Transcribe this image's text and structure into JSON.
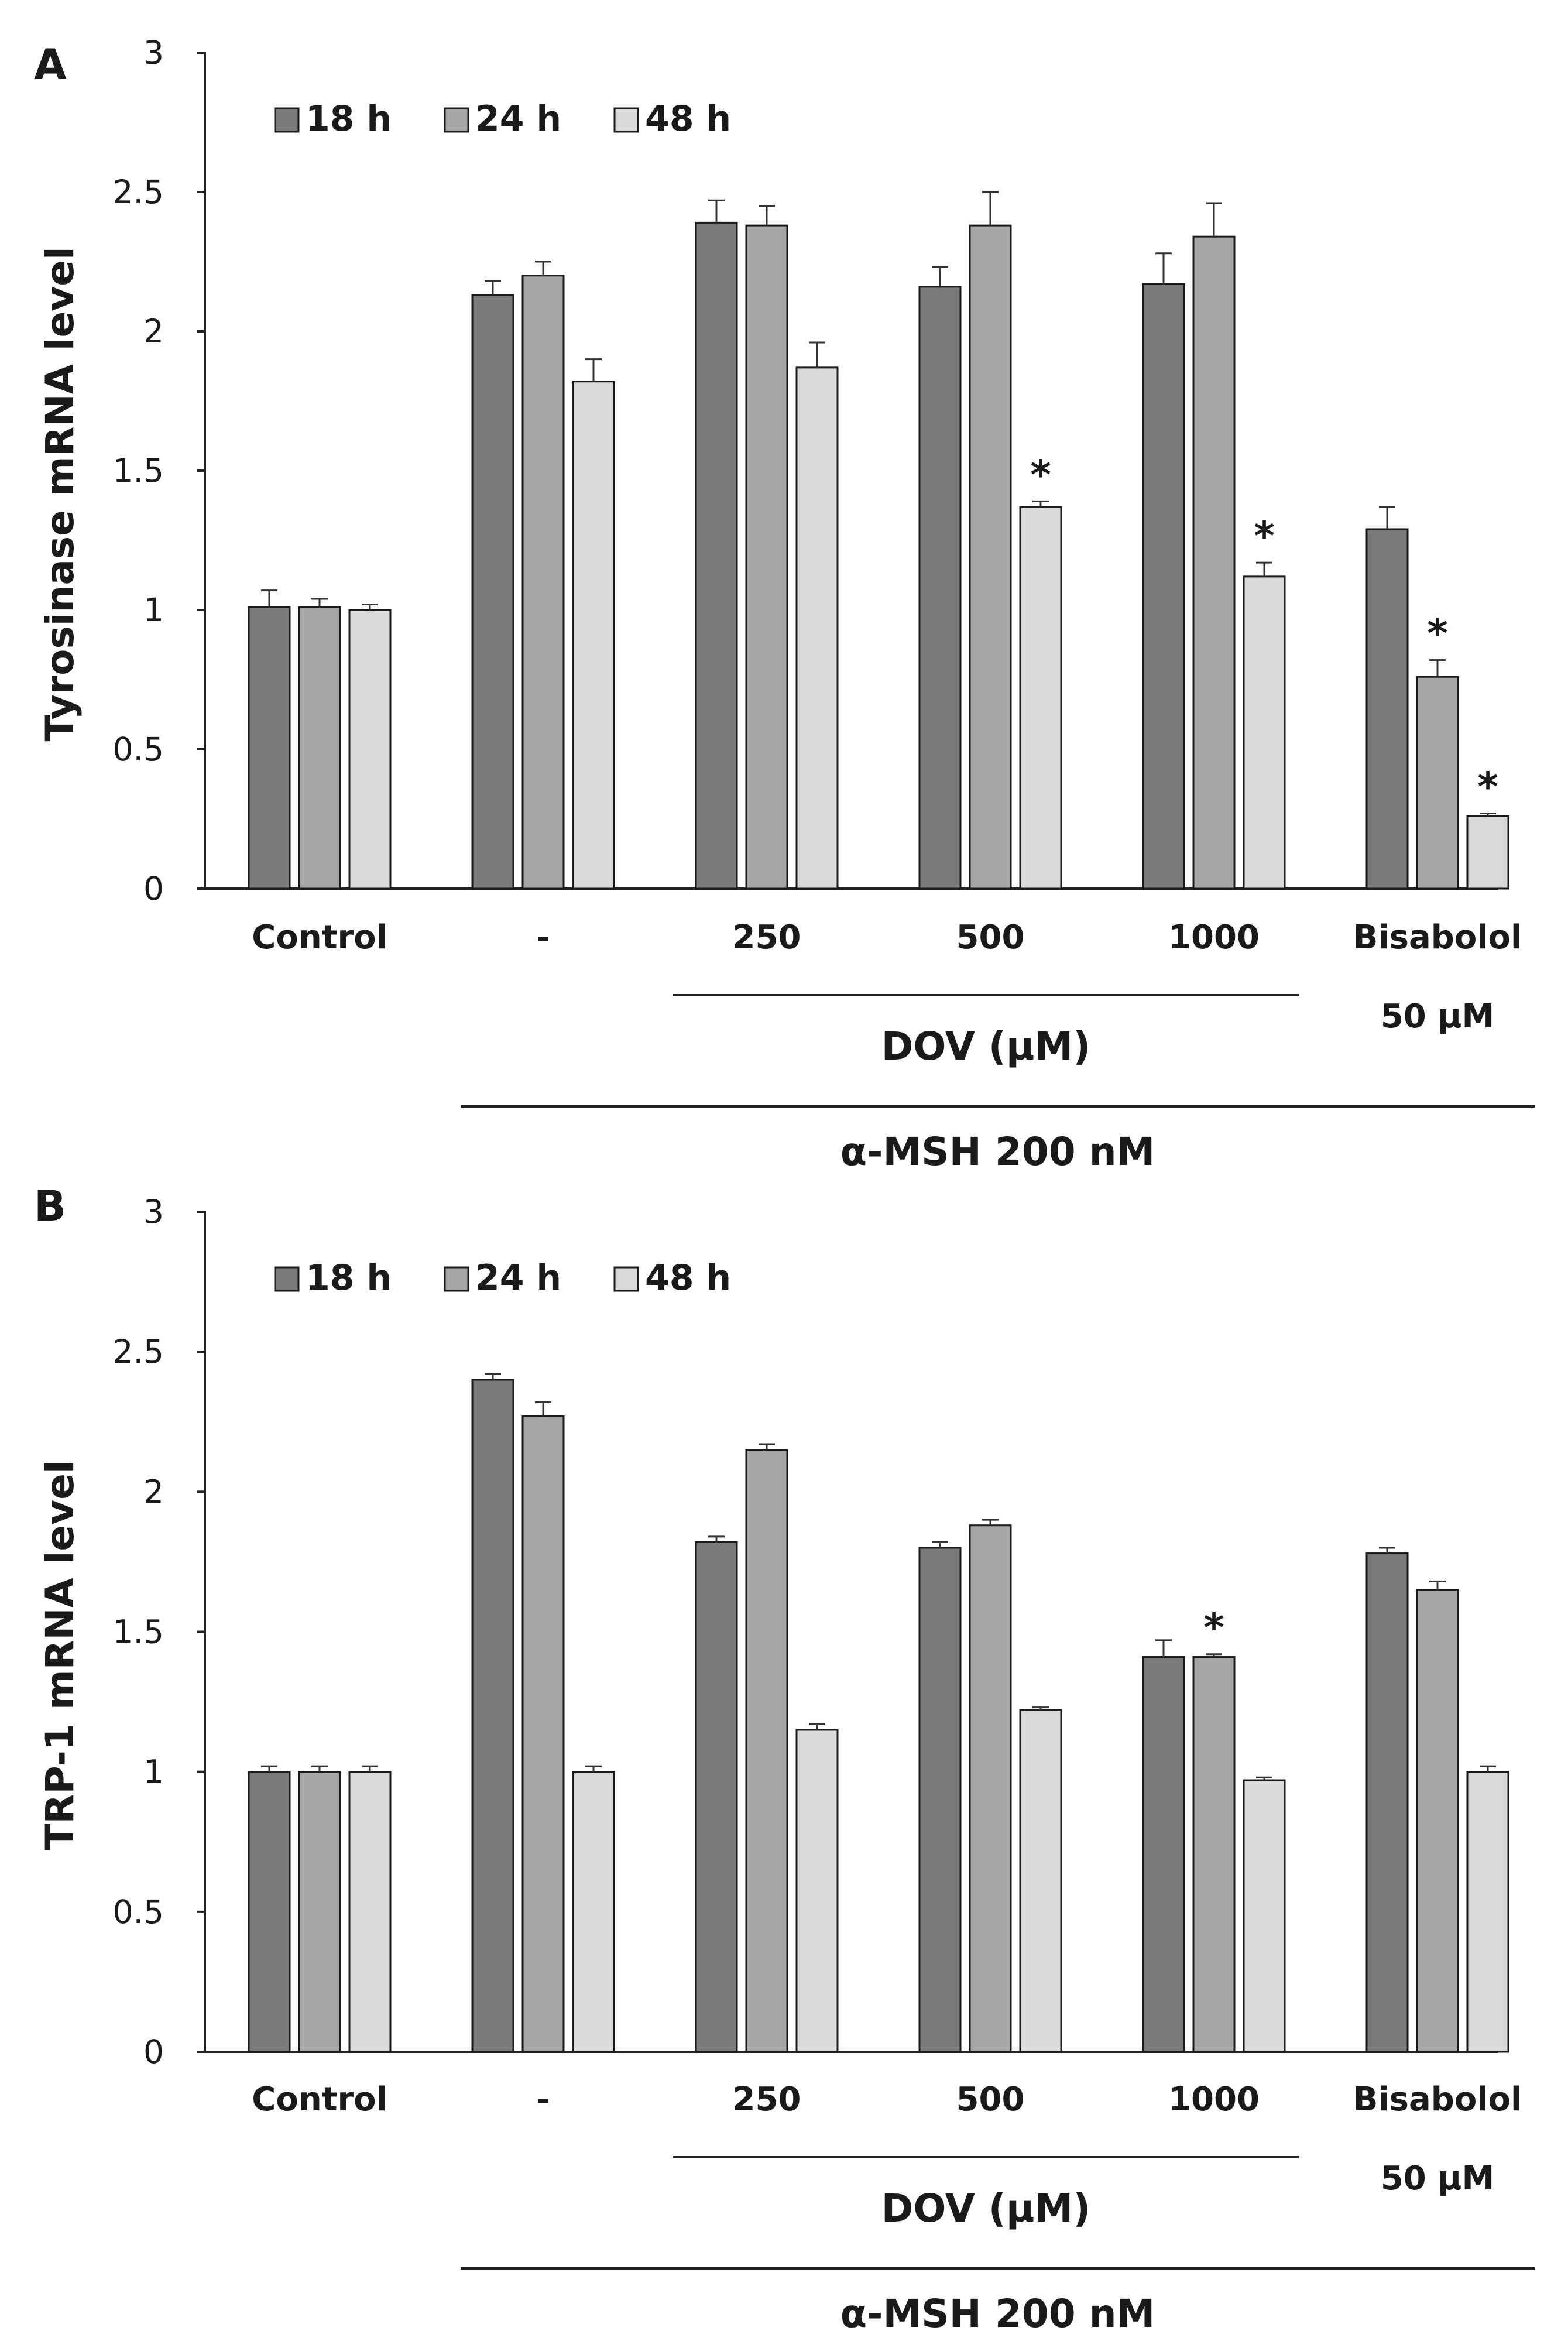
{
  "chart_data": [
    {
      "type": "bar",
      "panel_label": "A",
      "ylabel": "Tyrosinase  mRNA level",
      "ylim": [
        0,
        3
      ],
      "yticks": [
        "0",
        "0.5",
        "1",
        "1.5",
        "2",
        "2.5",
        "3"
      ],
      "categories": [
        "Control",
        "-",
        "250",
        "500",
        "1000",
        "Bisabolol"
      ],
      "category_sublabel": "50  μM",
      "group_labels": {
        "dov": "DOV (μM)",
        "msh": "α-MSH 200 nM"
      },
      "legend_position": "top-left",
      "series": [
        {
          "name": "18 h",
          "color": "#7a7a7a",
          "values": [
            1.01,
            2.13,
            2.39,
            2.16,
            2.17,
            1.29
          ],
          "errors": [
            0.06,
            0.05,
            0.08,
            0.07,
            0.11,
            0.08
          ]
        },
        {
          "name": "24 h",
          "color": "#a6a6a6",
          "values": [
            1.01,
            2.2,
            2.38,
            2.38,
            2.34,
            0.76
          ],
          "errors": [
            0.03,
            0.05,
            0.07,
            0.12,
            0.12,
            0.06
          ]
        },
        {
          "name": "48 h",
          "color": "#d9d9d9",
          "values": [
            1.0,
            1.82,
            1.87,
            1.37,
            1.12,
            0.26
          ],
          "errors": [
            0.02,
            0.08,
            0.09,
            0.02,
            0.05,
            0.01
          ]
        }
      ],
      "significance": [
        {
          "category": 3,
          "series": 2,
          "label": "*"
        },
        {
          "category": 4,
          "series": 2,
          "label": "*"
        },
        {
          "category": 5,
          "series": 1,
          "label": "*"
        },
        {
          "category": 5,
          "series": 2,
          "label": "*"
        }
      ]
    },
    {
      "type": "bar",
      "panel_label": "B",
      "ylabel": "TRP-1 mRNA level",
      "ylim": [
        0,
        3
      ],
      "yticks": [
        "0",
        "0.5",
        "1",
        "1.5",
        "2",
        "2.5",
        "3"
      ],
      "categories": [
        "Control",
        "-",
        "250",
        "500",
        "1000",
        "Bisabolol"
      ],
      "category_sublabel": "50  μM",
      "group_labels": {
        "dov": "DOV (μM)",
        "msh": "α-MSH 200 nM"
      },
      "legend_position": "top-left",
      "series": [
        {
          "name": "18 h",
          "color": "#7a7a7a",
          "values": [
            1.0,
            2.4,
            1.82,
            1.8,
            1.41,
            1.78
          ],
          "errors": [
            0.02,
            0.02,
            0.02,
            0.02,
            0.06,
            0.02
          ]
        },
        {
          "name": "24 h",
          "color": "#a6a6a6",
          "values": [
            1.0,
            2.27,
            2.15,
            1.88,
            1.41,
            1.65
          ],
          "errors": [
            0.02,
            0.05,
            0.02,
            0.02,
            0.01,
            0.03
          ]
        },
        {
          "name": "48 h",
          "color": "#d9d9d9",
          "values": [
            1.0,
            1.0,
            1.15,
            1.22,
            0.97,
            1.0
          ],
          "errors": [
            0.02,
            0.02,
            0.02,
            0.01,
            0.01,
            0.02
          ]
        }
      ],
      "significance": [
        {
          "category": 4,
          "series": 1,
          "label": "*"
        }
      ]
    }
  ]
}
